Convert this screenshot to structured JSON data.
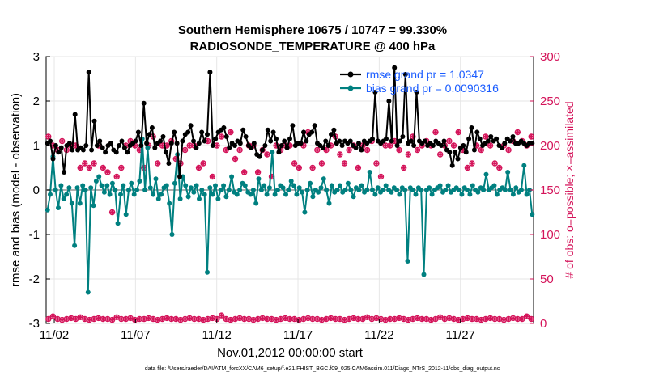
{
  "chart_data": {
    "type": "line",
    "title_line1": "Southern Hemisphere 10675 / 10747 = 99.330%",
    "title_line2": "RADIOSONDE_TEMPERATURE @ 400 hPa",
    "xlabel": "Nov.01,2012 00:00:00 start",
    "ylabel_left": "rmse and bias (model - observation)",
    "ylabel_right": "# of obs: o=possible; ×=assimilated",
    "ylim_left": [
      -3,
      3
    ],
    "ylim_right": [
      0,
      300
    ],
    "yticks_left": [
      "-3",
      "-2",
      "-1",
      "0",
      "1",
      "2",
      "3"
    ],
    "yticks_right": [
      "0",
      "50",
      "100",
      "150",
      "200",
      "250",
      "300"
    ],
    "xlim_days": [
      0.5,
      30.5
    ],
    "x_ticks": [
      {
        "label": "11/02",
        "day": 1.0
      },
      {
        "label": "11/07",
        "day": 6.0
      },
      {
        "label": "11/12",
        "day": 11.0
      },
      {
        "label": "11/17",
        "day": 16.0
      },
      {
        "label": "11/22",
        "day": 21.0
      },
      {
        "label": "11/27",
        "day": 26.0
      }
    ],
    "footer": "data file: /Users/raeder/DAI/ATM_forcXX/CAM6_setup/f.e21.FHIST_BGC.f09_025.CAM6assim.011/Diags_NTrS_2012-11/obs_diag_output.nc",
    "series": [
      {
        "name": "rmse",
        "legend": "rmse grand pr = 1.0347",
        "color": "#000000",
        "values": [
          1.05,
          1.1,
          0.7,
          1.0,
          0.85,
          0.95,
          0.4,
          1.0,
          1.05,
          0.9,
          1.7,
          0.9,
          0.95,
          0.9,
          1.0,
          2.65,
          0.9,
          1.55,
          1.0,
          1.1,
          0.95,
          0.85,
          1.0,
          1.05,
          0.9,
          0.85,
          1.0,
          1.1,
          0.95,
          0.85,
          1.0,
          1.05,
          1.1,
          1.3,
          1.0,
          1.95,
          1.05,
          1.25,
          1.4,
          0.95,
          1.05,
          1.1,
          1.2,
          0.85,
          0.6,
          1.05,
          1.3,
          1.05,
          0.3,
          1.1,
          1.25,
          1.3,
          1.45,
          1.1,
          0.95,
          1.05,
          1.3,
          1.1,
          1.25,
          2.65,
          1.0,
          1.15,
          1.3,
          1.35,
          1.4,
          1.2,
          0.95,
          1.05,
          1.0,
          1.1,
          1.05,
          1.35,
          1.2,
          1.0,
          0.95,
          1.05,
          0.8,
          0.75,
          0.9,
          1.0,
          1.35,
          1.1,
          1.3,
          1.15,
          0.85,
          1.0,
          1.1,
          0.95,
          1.15,
          1.45,
          1.0,
          1.05,
          1.05,
          1.3,
          1.1,
          1.25,
          1.3,
          1.45,
          1.05,
          1.0,
          0.95,
          1.1,
          1.0,
          1.25,
          1.35,
          1.05,
          1.1,
          1.0,
          1.1,
          1.05,
          1.1,
          1.0,
          0.95,
          1.05,
          0.9,
          1.1,
          1.05,
          1.1,
          1.15,
          2.2,
          1.1,
          1.05,
          1.1,
          1.15,
          2.0,
          1.1,
          2.75,
          1.0,
          1.1,
          1.2,
          2.6,
          1.05,
          1.1,
          1.0,
          2.2,
          1.1,
          1.05,
          1.1,
          1.0,
          1.05,
          1.0,
          1.1,
          1.05,
          1.0,
          1.1,
          0.9,
          0.85,
          0.55,
          0.85,
          0.7,
          0.95,
          1.0,
          0.85,
          1.15,
          1.4,
          0.9,
          1.3,
          1.15,
          1.0,
          1.05,
          1.1,
          1.2,
          1.1,
          1.15,
          1.0,
          0.95,
          1.05,
          1.15,
          1.1,
          1.2,
          1.05,
          1.05,
          1.1,
          1.05,
          1.0,
          1.05,
          1.05
        ]
      },
      {
        "name": "bias",
        "legend": "bias grand pr = 0.0090316",
        "color": "#008080",
        "values": [
          -0.45,
          -0.1,
          0.75,
          0.0,
          -0.4,
          0.1,
          -0.2,
          -0.1,
          0.05,
          -0.3,
          -1.25,
          0.05,
          -0.3,
          0.1,
          0.0,
          -2.3,
          0.05,
          -0.35,
          0.2,
          0.3,
          0.1,
          -0.05,
          0.1,
          -0.1,
          0.15,
          0.0,
          -0.75,
          -0.1,
          0.1,
          -0.55,
          0.0,
          0.15,
          -0.1,
          0.0,
          0.2,
          1.15,
          0.0,
          0.95,
          0.05,
          -0.1,
          0.25,
          -0.2,
          -0.1,
          0.05,
          0.1,
          -0.3,
          -1.0,
          0.15,
          0.8,
          -0.2,
          0.3,
          0.1,
          -0.15,
          0.05,
          -0.05,
          0.1,
          -0.2,
          0.0,
          -0.1,
          -1.85,
          0.05,
          -0.1,
          0.1,
          -0.2,
          0.0,
          0.1,
          -0.15,
          0.0,
          0.3,
          -0.05,
          -0.1,
          0.0,
          0.15,
          0.1,
          -0.05,
          -0.1,
          0.0,
          -0.3,
          0.25,
          0.0,
          0.1,
          -0.1,
          0.05,
          0.85,
          -0.1,
          0.0,
          0.1,
          0.05,
          -0.1,
          0.0,
          0.2,
          0.1,
          -0.1,
          0.05,
          -0.05,
          -0.5,
          0.0,
          0.15,
          -0.15,
          0.0,
          -0.05,
          0.05,
          0.25,
          0.0,
          -0.3,
          0.1,
          -0.05,
          0.0,
          0.1,
          -0.05,
          0.0,
          0.15,
          0.0,
          -0.15,
          0.05,
          0.0,
          0.1,
          -0.05,
          0.0,
          0.4,
          0.0,
          -0.1,
          0.05,
          -0.05,
          0.0,
          0.1,
          0.0,
          -0.05,
          0.05,
          0.0,
          -0.1,
          0.05,
          0.0,
          -1.6,
          0.05,
          0.0,
          -0.1,
          0.05,
          0.0,
          -1.9,
          0.0,
          0.05,
          -0.1,
          0.0,
          0.05,
          0.1,
          -0.05,
          0.0,
          0.1,
          -0.05,
          0.0,
          0.05,
          0.0,
          -0.1,
          0.05,
          0.0,
          -0.1,
          0.1,
          0.0,
          -0.05,
          0.05,
          0.0,
          0.35,
          0.0,
          0.05,
          0.1,
          -0.1,
          0.0,
          0.05,
          0.0,
          0.4,
          0.0,
          -0.1,
          0.05,
          -0.05,
          0.0,
          0.55,
          -0.1,
          0.0,
          -0.55
        ]
      }
    ],
    "obs_possible_upper": [
      210,
      200,
      195,
      205,
      195,
      200,
      200,
      175,
      180,
      175,
      180,
      200,
      175,
      170,
      125,
      165,
      175,
      200,
      205,
      200,
      195,
      175,
      200,
      210,
      180,
      200,
      200,
      205,
      185,
      180,
      195,
      200,
      200,
      175,
      180,
      205,
      165,
      200,
      210,
      195,
      215,
      185,
      195,
      170,
      200,
      200,
      170,
      195,
      190,
      165,
      200,
      195,
      200,
      200,
      180,
      175,
      200,
      215,
      175,
      195,
      180,
      195,
      200,
      210,
      190,
      180,
      195,
      200,
      175,
      200,
      195,
      205,
      180,
      165,
      200,
      200,
      205,
      195,
      175,
      190,
      210,
      195,
      200,
      205,
      200,
      215,
      190,
      200,
      205,
      200,
      215,
      195,
      175,
      180,
      200,
      195,
      210,
      200,
      180,
      175,
      200,
      195,
      205,
      215,
      205,
      200,
      210
    ],
    "obs_possible_lower": [
      5,
      8,
      5,
      4,
      5,
      6,
      5,
      7,
      5,
      4,
      5,
      6,
      5,
      5,
      4,
      7,
      5,
      5,
      6,
      4,
      5,
      5,
      6,
      5,
      4,
      5,
      6,
      5,
      5,
      4,
      5,
      6,
      5,
      5,
      4,
      5,
      6,
      5,
      9,
      5,
      4,
      5,
      6,
      5,
      5,
      4,
      5,
      6,
      5,
      5,
      4,
      5,
      6,
      5,
      5,
      4,
      5,
      6,
      5,
      5,
      4,
      5,
      6,
      5,
      5,
      4,
      5,
      6,
      5,
      5,
      7,
      5,
      6,
      5,
      4,
      5,
      5,
      6,
      5,
      4,
      5,
      6,
      5,
      5,
      4,
      5,
      7,
      5,
      6,
      5,
      4,
      5,
      6,
      5,
      5,
      4,
      5,
      6,
      5,
      5,
      4,
      5,
      6,
      5,
      5,
      8,
      5
    ]
  },
  "legend": {
    "rmse_label": "rmse grand pr = 1.0347",
    "bias_label": "bias grand pr = 0.0090316"
  }
}
